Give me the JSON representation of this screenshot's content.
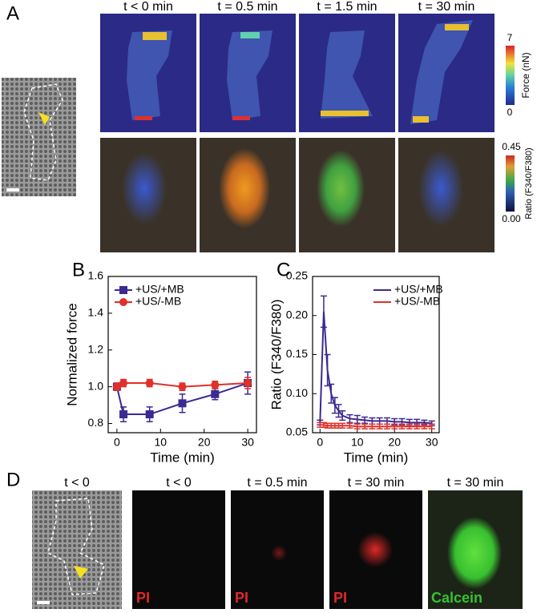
{
  "panel_labels": [
    "A",
    "B",
    "C",
    "D"
  ],
  "panel_a": {
    "time_labels": [
      "t < 0 min",
      "t = 0.5 min",
      "t = 1.5 min",
      "t = 30 min"
    ],
    "force_colorbar": {
      "max": "7",
      "min": "0",
      "label": "Force (nN)"
    },
    "ratio_colorbar": {
      "max": "0.45",
      "min": "0.00",
      "label": "Ratio (F340/F380)"
    }
  },
  "panel_d": {
    "time_labels": [
      "t < 0",
      "t < 0",
      "t = 0.5 min",
      "t = 30 min",
      "t = 30 min"
    ],
    "channel_labels": [
      "PI",
      "PI",
      "PI",
      "Calcein"
    ]
  },
  "chart_data": [
    {
      "type": "line",
      "y_label": "Normalized force",
      "x_label": "Time (min)",
      "xlim": [
        -2,
        32
      ],
      "xticks": [
        0,
        10,
        20,
        30
      ],
      "ylim": [
        0.75,
        1.6
      ],
      "yticks": [
        0.8,
        {
          "value": 1,
          "label": "1.0"
        },
        1.2,
        1.4,
        1.6
      ],
      "legend": "upper left",
      "series": [
        {
          "name": "+US/+MB",
          "color": "#3b2a92",
          "marker": "square",
          "x": [
            0,
            1.5,
            7.5,
            15,
            22.5,
            30
          ],
          "values": [
            1.0,
            0.85,
            0.85,
            0.91,
            0.96,
            1.02
          ],
          "errors": [
            0.02,
            0.04,
            0.04,
            0.05,
            0.03,
            0.06
          ]
        },
        {
          "name": "+US/-MB",
          "color": "#e0302a",
          "marker": "circle",
          "x": [
            0,
            1.5,
            7.5,
            15,
            22.5,
            30
          ],
          "values": [
            1.0,
            1.02,
            1.02,
            1.0,
            1.01,
            1.02
          ],
          "errors": [
            0.02,
            0.02,
            0.02,
            0.02,
            0.02,
            0.03
          ]
        }
      ]
    },
    {
      "type": "line",
      "y_label": "Ratio (F340/F380)",
      "x_label": "Time (min)",
      "xlim": [
        -2,
        32
      ],
      "xticks": [
        0,
        10,
        20,
        30
      ],
      "ylim": [
        0.05,
        0.25
      ],
      "yticks": [
        0.05,
        {
          "value": 0.1,
          "label": "0.10"
        },
        0.15,
        {
          "value": 0.2,
          "label": "0.20"
        },
        0.25
      ],
      "legend": "upper right",
      "series": [
        {
          "name": "+US/+MB",
          "color": "#3b2a92",
          "marker": "none",
          "x": [
            0,
            1,
            2,
            3,
            4,
            5,
            6,
            8,
            10,
            12,
            14,
            16,
            18,
            20,
            22,
            24,
            26,
            28,
            30
          ],
          "values": [
            0.063,
            0.205,
            0.13,
            0.1,
            0.085,
            0.078,
            0.072,
            0.068,
            0.067,
            0.066,
            0.065,
            0.065,
            0.065,
            0.064,
            0.064,
            0.063,
            0.063,
            0.063,
            0.062
          ],
          "errors": [
            0.003,
            0.02,
            0.02,
            0.012,
            0.01,
            0.008,
            0.006,
            0.005,
            0.005,
            0.004,
            0.004,
            0.004,
            0.004,
            0.004,
            0.004,
            0.004,
            0.004,
            0.003,
            0.003
          ]
        },
        {
          "name": "+US/-MB",
          "color": "#e0302a",
          "marker": "none",
          "x": [
            0,
            1,
            2,
            3,
            4,
            5,
            6,
            8,
            10,
            12,
            14,
            16,
            18,
            20,
            22,
            24,
            26,
            28,
            30
          ],
          "values": [
            0.06,
            0.06,
            0.059,
            0.059,
            0.059,
            0.059,
            0.059,
            0.059,
            0.058,
            0.058,
            0.058,
            0.058,
            0.058,
            0.058,
            0.058,
            0.058,
            0.058,
            0.058,
            0.058
          ],
          "errors": [
            0.003,
            0.003,
            0.003,
            0.003,
            0.003,
            0.003,
            0.003,
            0.003,
            0.003,
            0.003,
            0.003,
            0.003,
            0.003,
            0.003,
            0.003,
            0.003,
            0.003,
            0.003,
            0.003
          ]
        }
      ]
    }
  ]
}
